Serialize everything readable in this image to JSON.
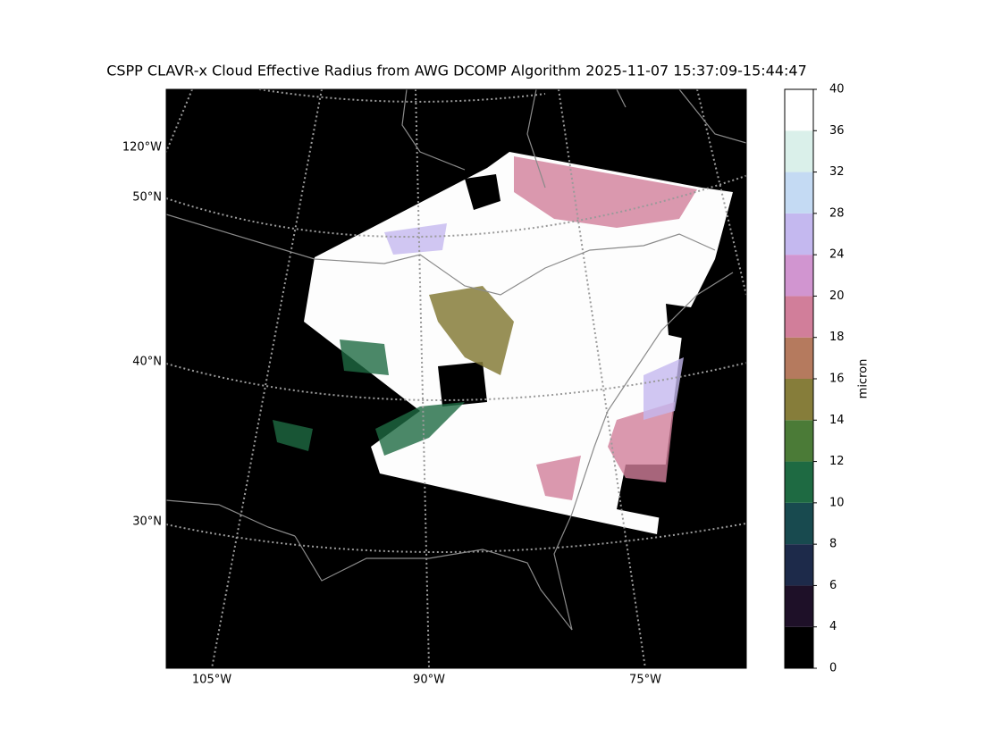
{
  "title": "CSPP CLAVR-x Cloud Effective Radius from AWG DCOMP Algorithm 2025-11-07 15:37:09-15:44:47",
  "map": {
    "left_labels": [
      "120°W",
      "50°N",
      "40°N",
      "30°N"
    ],
    "bottom_labels": [
      "105°W",
      "90°W",
      "75°W"
    ]
  },
  "colorbar": {
    "label": "micron",
    "ticks": [
      0,
      4,
      6,
      8,
      10,
      12,
      14,
      16,
      18,
      20,
      24,
      28,
      32,
      36,
      40
    ],
    "colors": [
      "#000000",
      "#1e1028",
      "#1d2a4a",
      "#184a4f",
      "#1e6a42",
      "#4b7b37",
      "#867d3a",
      "#b57a5e",
      "#d17e9a",
      "#d195d0",
      "#c4b8ef",
      "#c4daf3",
      "#daf0ea",
      "#ffffff"
    ]
  }
}
